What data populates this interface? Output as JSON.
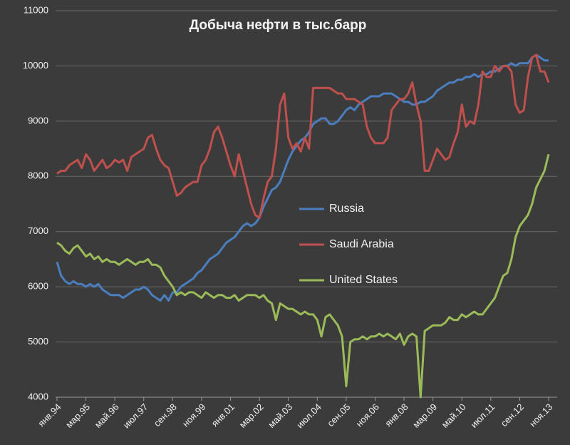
{
  "chart_data": {
    "type": "line",
    "title": "Добыча нефти в тыс.барр",
    "categories": [
      "янв.94",
      null,
      null,
      null,
      null,
      null,
      null,
      "мар.95",
      null,
      null,
      null,
      null,
      null,
      null,
      "май.96",
      null,
      null,
      null,
      null,
      null,
      null,
      "июл.97",
      null,
      null,
      null,
      null,
      null,
      null,
      "сен.98",
      null,
      null,
      null,
      null,
      null,
      null,
      "ноя.99",
      null,
      null,
      null,
      null,
      null,
      null,
      "янв.01",
      null,
      null,
      null,
      null,
      null,
      null,
      "мар.02",
      null,
      null,
      null,
      null,
      null,
      null,
      "май.03",
      null,
      null,
      null,
      null,
      null,
      null,
      "июл.04",
      null,
      null,
      null,
      null,
      null,
      null,
      "сен.05",
      null,
      null,
      null,
      null,
      null,
      null,
      "ноя.06",
      null,
      null,
      null,
      null,
      null,
      null,
      "янв.08",
      null,
      null,
      null,
      null,
      null,
      null,
      "мар.09",
      null,
      null,
      null,
      null,
      null,
      null,
      "май.10",
      null,
      null,
      null,
      null,
      null,
      null,
      "июл.11",
      null,
      null,
      null,
      null,
      null,
      null,
      "сен.12",
      null,
      null,
      null,
      null,
      null,
      null,
      "ноя.13"
    ],
    "series": [
      {
        "name": "Russia",
        "color": "#4a7ebf",
        "values": [
          6450,
          6200,
          6100,
          6050,
          6100,
          6050,
          6050,
          6000,
          6050,
          6000,
          6050,
          5950,
          5900,
          5850,
          5850,
          5850,
          5800,
          5850,
          5900,
          5950,
          5950,
          6000,
          5950,
          5850,
          5800,
          5750,
          5850,
          5750,
          5900,
          5900,
          6000,
          6050,
          6100,
          6150,
          6250,
          6300,
          6400,
          6500,
          6550,
          6600,
          6700,
          6800,
          6850,
          6900,
          7000,
          7100,
          7150,
          7100,
          7150,
          7250,
          7450,
          7600,
          7750,
          7800,
          7900,
          8100,
          8300,
          8450,
          8550,
          8650,
          8700,
          8800,
          8950,
          9000,
          9050,
          9050,
          8950,
          8950,
          9000,
          9100,
          9200,
          9250,
          9200,
          9300,
          9350,
          9400,
          9450,
          9450,
          9450,
          9500,
          9500,
          9500,
          9450,
          9400,
          9350,
          9350,
          9300,
          9300,
          9350,
          9350,
          9400,
          9450,
          9550,
          9600,
          9650,
          9700,
          9700,
          9750,
          9750,
          9800,
          9800,
          9850,
          9800,
          9850,
          9850,
          9900,
          9900,
          9950,
          10000,
          10000,
          10050,
          10000,
          10050,
          10050,
          10050,
          10150,
          10200,
          10150,
          10100,
          10100
        ]
      },
      {
        "name": "Saudi Arabia",
        "color": "#c0504d",
        "values": [
          8050,
          8100,
          8100,
          8200,
          8250,
          8300,
          8150,
          8400,
          8300,
          8100,
          8200,
          8300,
          8150,
          8200,
          8300,
          8250,
          8300,
          8100,
          8350,
          8400,
          8450,
          8500,
          8700,
          8750,
          8500,
          8300,
          8200,
          8150,
          7900,
          7650,
          7700,
          7800,
          7850,
          7900,
          7900,
          8200,
          8300,
          8500,
          8800,
          8900,
          8700,
          8450,
          8200,
          8000,
          8400,
          8100,
          7800,
          7500,
          7300,
          7250,
          7600,
          7900,
          8000,
          8500,
          9300,
          9500,
          8700,
          8500,
          8600,
          8450,
          8700,
          8500,
          9600,
          9600,
          9600,
          9600,
          9600,
          9550,
          9500,
          9500,
          9400,
          9400,
          9400,
          9350,
          9300,
          8900,
          8700,
          8600,
          8600,
          8600,
          8700,
          9200,
          9300,
          9400,
          9400,
          9500,
          9700,
          9300,
          9000,
          8100,
          8100,
          8300,
          8500,
          8400,
          8300,
          8350,
          8600,
          8800,
          9300,
          8900,
          9000,
          8950,
          9300,
          9900,
          9800,
          9800,
          10000,
          9900,
          10000,
          10000,
          9900,
          9300,
          9150,
          9200,
          9800,
          10150,
          10200,
          9900,
          9900,
          9700
        ]
      },
      {
        "name": "United States",
        "color": "#9bbb59",
        "values": [
          6800,
          6750,
          6650,
          6600,
          6700,
          6750,
          6650,
          6550,
          6600,
          6500,
          6550,
          6450,
          6500,
          6450,
          6450,
          6400,
          6450,
          6500,
          6450,
          6400,
          6450,
          6450,
          6500,
          6400,
          6400,
          6350,
          6200,
          6100,
          6000,
          5850,
          5900,
          5850,
          5900,
          5900,
          5850,
          5800,
          5900,
          5850,
          5800,
          5850,
          5850,
          5800,
          5800,
          5850,
          5750,
          5800,
          5850,
          5850,
          5850,
          5800,
          5850,
          5750,
          5700,
          5400,
          5700,
          5650,
          5600,
          5600,
          5550,
          5500,
          5550,
          5500,
          5500,
          5400,
          5100,
          5450,
          5500,
          5400,
          5300,
          5100,
          4200,
          5000,
          5050,
          5050,
          5100,
          5050,
          5100,
          5100,
          5150,
          5100,
          5150,
          5100,
          5050,
          5150,
          4950,
          5100,
          5150,
          5100,
          4000,
          5200,
          5250,
          5300,
          5300,
          5300,
          5350,
          5450,
          5400,
          5400,
          5500,
          5450,
          5500,
          5550,
          5500,
          5500,
          5600,
          5700,
          5800,
          6000,
          6200,
          6250,
          6500,
          6900,
          7100,
          7200,
          7300,
          7500,
          7800,
          7950,
          8100,
          8400
        ]
      }
    ],
    "ylim": [
      4000,
      11000
    ],
    "yticks": [
      4000,
      5000,
      6000,
      7000,
      8000,
      9000,
      10000,
      11000
    ],
    "grid": true
  }
}
